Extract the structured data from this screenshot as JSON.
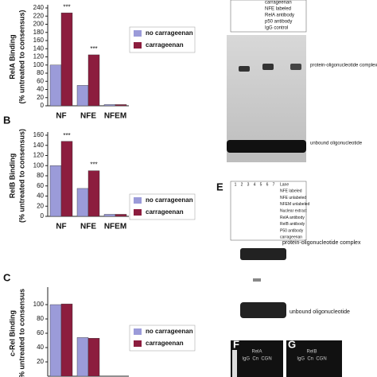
{
  "chart_data": [
    {
      "type": "bar",
      "ylabel": [
        "RelA Binding",
        "(% untreated to consensus)"
      ],
      "categories": [
        "NF",
        "NFE",
        "NFEM"
      ],
      "series": [
        {
          "name": "no carrageenan",
          "color": "#9b9bd9",
          "values": [
            100,
            50,
            3
          ]
        },
        {
          "name": "carrageenan",
          "color": "#8c1d3e",
          "values": [
            228,
            125,
            3
          ]
        }
      ],
      "annotations": [
        "***",
        "***"
      ],
      "ylim": [
        0,
        240
      ],
      "yticks": [
        0,
        20,
        40,
        60,
        80,
        100,
        120,
        140,
        160,
        180,
        200,
        220,
        240
      ]
    },
    {
      "type": "bar",
      "panel": "B",
      "ylabel": [
        "RelB Binding",
        "(% untreated to consensus)"
      ],
      "categories": [
        "NF",
        "NFE",
        "NFEM"
      ],
      "series": [
        {
          "name": "no carrageenan",
          "color": "#9b9bd9",
          "values": [
            100,
            55,
            4
          ]
        },
        {
          "name": "carrageenan",
          "color": "#8c1d3e",
          "values": [
            148,
            90,
            4
          ]
        }
      ],
      "annotations": [
        "***",
        "***"
      ],
      "ylim": [
        0,
        160
      ],
      "yticks": [
        0,
        20,
        40,
        60,
        80,
        100,
        120,
        140,
        160
      ]
    },
    {
      "type": "bar",
      "panel": "C",
      "ylabel": [
        "c-Rel Binding",
        "% untreated to consensus"
      ],
      "categories": [
        null,
        null
      ],
      "series": [
        {
          "name": "no carrageenan",
          "color": "#9b9bd9",
          "values": [
            100,
            54
          ]
        },
        {
          "name": "carrageenan",
          "color": "#8c1d3e",
          "values": [
            101,
            53
          ]
        }
      ],
      "ylim": [
        0,
        120
      ],
      "yticks": [
        20,
        40,
        60,
        80,
        100
      ]
    }
  ],
  "gels": [
    {
      "rows": [
        "carrageenan",
        "NFE labeled",
        "RelA antibody",
        "p50 antibody",
        "IgG control"
      ],
      "labels": [
        "protein-oligonucleotide complex",
        "unbound oligonucleotide"
      ]
    },
    {
      "panel": "E",
      "rows": [
        "Lane",
        "NFE labeled",
        "NFE unlabeled",
        "NFEM unlabeled",
        "Nuclear extract",
        "RelA antibody",
        "RelB antibody",
        "P50 antibody",
        "carrageenan"
      ],
      "lanes": [
        "1",
        "2",
        "3",
        "4",
        "5",
        "6",
        "7"
      ],
      "labels": [
        "protein-oligonucleotide complex",
        "unbound oligonucleotide"
      ]
    }
  ],
  "blots": [
    {
      "panel": "F",
      "title": "RelA",
      "lanes": "IgG  Cn  CGN"
    },
    {
      "panel": "G",
      "title": "RelB",
      "lanes": "IgG  Cn  CGN"
    }
  ]
}
